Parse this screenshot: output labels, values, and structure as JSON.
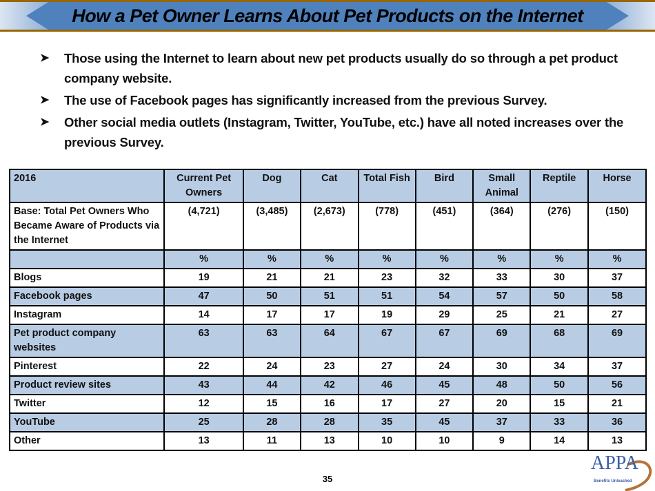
{
  "header": {
    "title": "How a Pet Owner Learns About Pet Products on the Internet",
    "banner_color": "#4f81bd",
    "border_color": "#996600"
  },
  "bullets": [
    "Those using the Internet to learn about new pet products usually do so through a pet product company website.",
    "The use of Facebook pages has significantly increased from the previous Survey.",
    "Other social media outlets (Instagram, Twitter, YouTube, etc.) have all noted increases over the previous Survey."
  ],
  "bullet_icon": "arrow-right-icon",
  "table": {
    "shade_color": "#b8cce4",
    "columns": [
      "2016",
      "Current Pet Owners",
      "Dog",
      "Cat",
      "Total Fish",
      "Bird",
      "Small Animal",
      "Reptile",
      "Horse"
    ],
    "base_row": [
      "Base: Total Pet Owners Who Became Aware of Products via the Internet",
      "(4,721)",
      "(3,485)",
      "(2,673)",
      "(778)",
      "(451)",
      "(364)",
      "(276)",
      "(150)"
    ],
    "unit_row": [
      "",
      "%",
      "%",
      "%",
      "%",
      "%",
      "%",
      "%",
      "%"
    ],
    "rows": [
      [
        "Blogs",
        "19",
        "21",
        "21",
        "23",
        "32",
        "33",
        "30",
        "37"
      ],
      [
        "Facebook pages",
        "47",
        "50",
        "51",
        "51",
        "54",
        "57",
        "50",
        "58"
      ],
      [
        "Instagram",
        "14",
        "17",
        "17",
        "19",
        "29",
        "25",
        "21",
        "27"
      ],
      [
        "Pet product company websites",
        "63",
        "63",
        "64",
        "67",
        "67",
        "69",
        "68",
        "69"
      ],
      [
        "Pinterest",
        "22",
        "24",
        "23",
        "27",
        "24",
        "30",
        "34",
        "37"
      ],
      [
        "Product review sites",
        "43",
        "44",
        "42",
        "46",
        "45",
        "48",
        "50",
        "56"
      ],
      [
        "Twitter",
        "12",
        "15",
        "16",
        "17",
        "27",
        "20",
        "15",
        "21"
      ],
      [
        "YouTube",
        "25",
        "28",
        "28",
        "35",
        "45",
        "37",
        "33",
        "36"
      ],
      [
        "Other",
        "13",
        "11",
        "13",
        "10",
        "10",
        "9",
        "14",
        "13"
      ]
    ]
  },
  "footer": {
    "page_number": "35",
    "logo_text": "APPA",
    "logo_tagline": "Benefits Unleashed"
  }
}
